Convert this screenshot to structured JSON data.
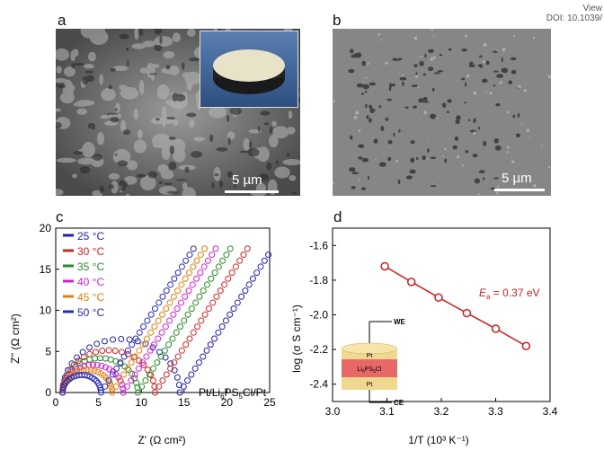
{
  "header": {
    "view_text": "View",
    "doi_text": "DOI: 10.1039/"
  },
  "panels": {
    "a": {
      "letter": "a",
      "scale_label": "5 µm"
    },
    "b": {
      "letter": "b",
      "scale_label": "5 µm"
    },
    "c": {
      "letter": "c"
    },
    "d": {
      "letter": "d"
    }
  },
  "chart_data": [
    {
      "type": "scatter",
      "xlabel": "Z' (Ω cm²)",
      "ylabel": "Z'' (Ω cm²)",
      "xlim": [
        0,
        25
      ],
      "ylim": [
        0,
        20
      ],
      "xticks": [
        "0",
        "5",
        "10",
        "15",
        "20",
        "25"
      ],
      "yticks": [
        "0",
        "5",
        "10",
        "15",
        "20"
      ],
      "annotation": "Pt/Li6PS5Cl/Pt",
      "series": [
        {
          "name": "25 °C",
          "color": "#1f1fa8",
          "arc_start": 0.8,
          "arc_end": 14.5,
          "tail_slope": 1.2
        },
        {
          "name": "30 °C",
          "color": "#d02424",
          "arc_start": 0.8,
          "arc_end": 11.6,
          "tail_slope": 1.2
        },
        {
          "name": "35 °C",
          "color": "#2a8a2a",
          "arc_start": 0.8,
          "arc_end": 9.6,
          "tail_slope": 1.2
        },
        {
          "name": "40 °C",
          "color": "#d020d0",
          "arc_start": 0.8,
          "arc_end": 7.9,
          "tail_slope": 1.2
        },
        {
          "name": "45 °C",
          "color": "#e07f10",
          "arc_start": 0.8,
          "arc_end": 6.6,
          "tail_slope": 1.2
        },
        {
          "name": "50 °C",
          "color": "#2a2ab4",
          "arc_start": 0.8,
          "arc_end": 5.3,
          "tail_slope": 1.2
        }
      ]
    },
    {
      "type": "line",
      "xlabel": "1/T (10³ K⁻¹)",
      "ylabel": "log (σ S cm⁻¹)",
      "xlim": [
        3.0,
        3.4
      ],
      "ylim": [
        -2.5,
        -1.5
      ],
      "xticks": [
        "3.0",
        "3.1",
        "3.2",
        "3.3",
        "3.4"
      ],
      "yticks": [
        "-1.6",
        "-1.8",
        "-2.0",
        "-2.2",
        "-2.4"
      ],
      "annotation": "Ea = 0.37 eV",
      "series": [
        {
          "name": "",
          "color": "#c82020",
          "x": [
            3.096,
            3.145,
            3.195,
            3.247,
            3.3,
            3.356
          ],
          "y": [
            -1.72,
            -1.81,
            -1.9,
            -1.99,
            -2.08,
            -2.18
          ]
        }
      ],
      "inset": {
        "top_label": "WE",
        "bottom_label": "CE",
        "layers": [
          "Pt",
          "Li6PS5Cl",
          "Pt"
        ]
      }
    }
  ]
}
